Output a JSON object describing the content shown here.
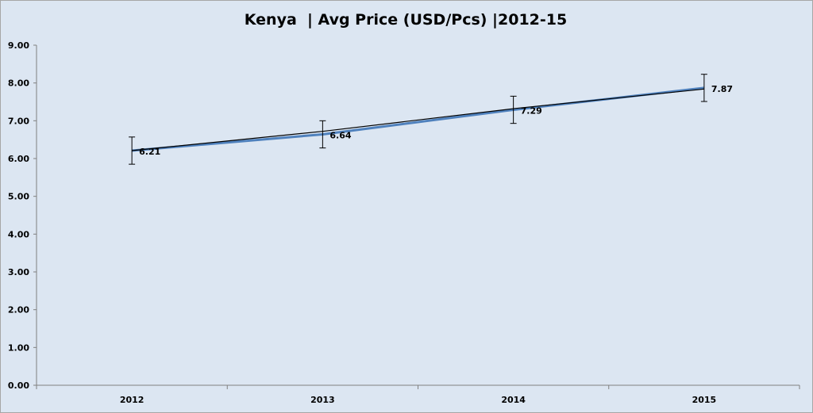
{
  "chart_data": {
    "type": "line",
    "title": "Kenya  | Avg Price (USD/Pcs) |2012-15",
    "xlabel": "",
    "ylabel": "",
    "categories": [
      "2012",
      "2013",
      "2014",
      "2015"
    ],
    "series": [
      {
        "values": [
          6.21,
          6.64,
          7.29,
          7.87
        ],
        "color": "#4f81bd",
        "data_labels": true,
        "error_bar": 0.36
      },
      {
        "values": [
          6.21,
          6.72,
          7.32,
          7.84
        ],
        "color": "#000000",
        "trendline": true
      }
    ],
    "ylim": [
      0,
      9
    ],
    "yticks": [
      "0.00",
      "1.00",
      "2.00",
      "3.00",
      "4.00",
      "5.00",
      "6.00",
      "7.00",
      "8.00",
      "9.00"
    ],
    "grid": false,
    "legend": "none",
    "colors": {
      "plot_background": "#dce6f2",
      "axis": "#808080"
    }
  }
}
